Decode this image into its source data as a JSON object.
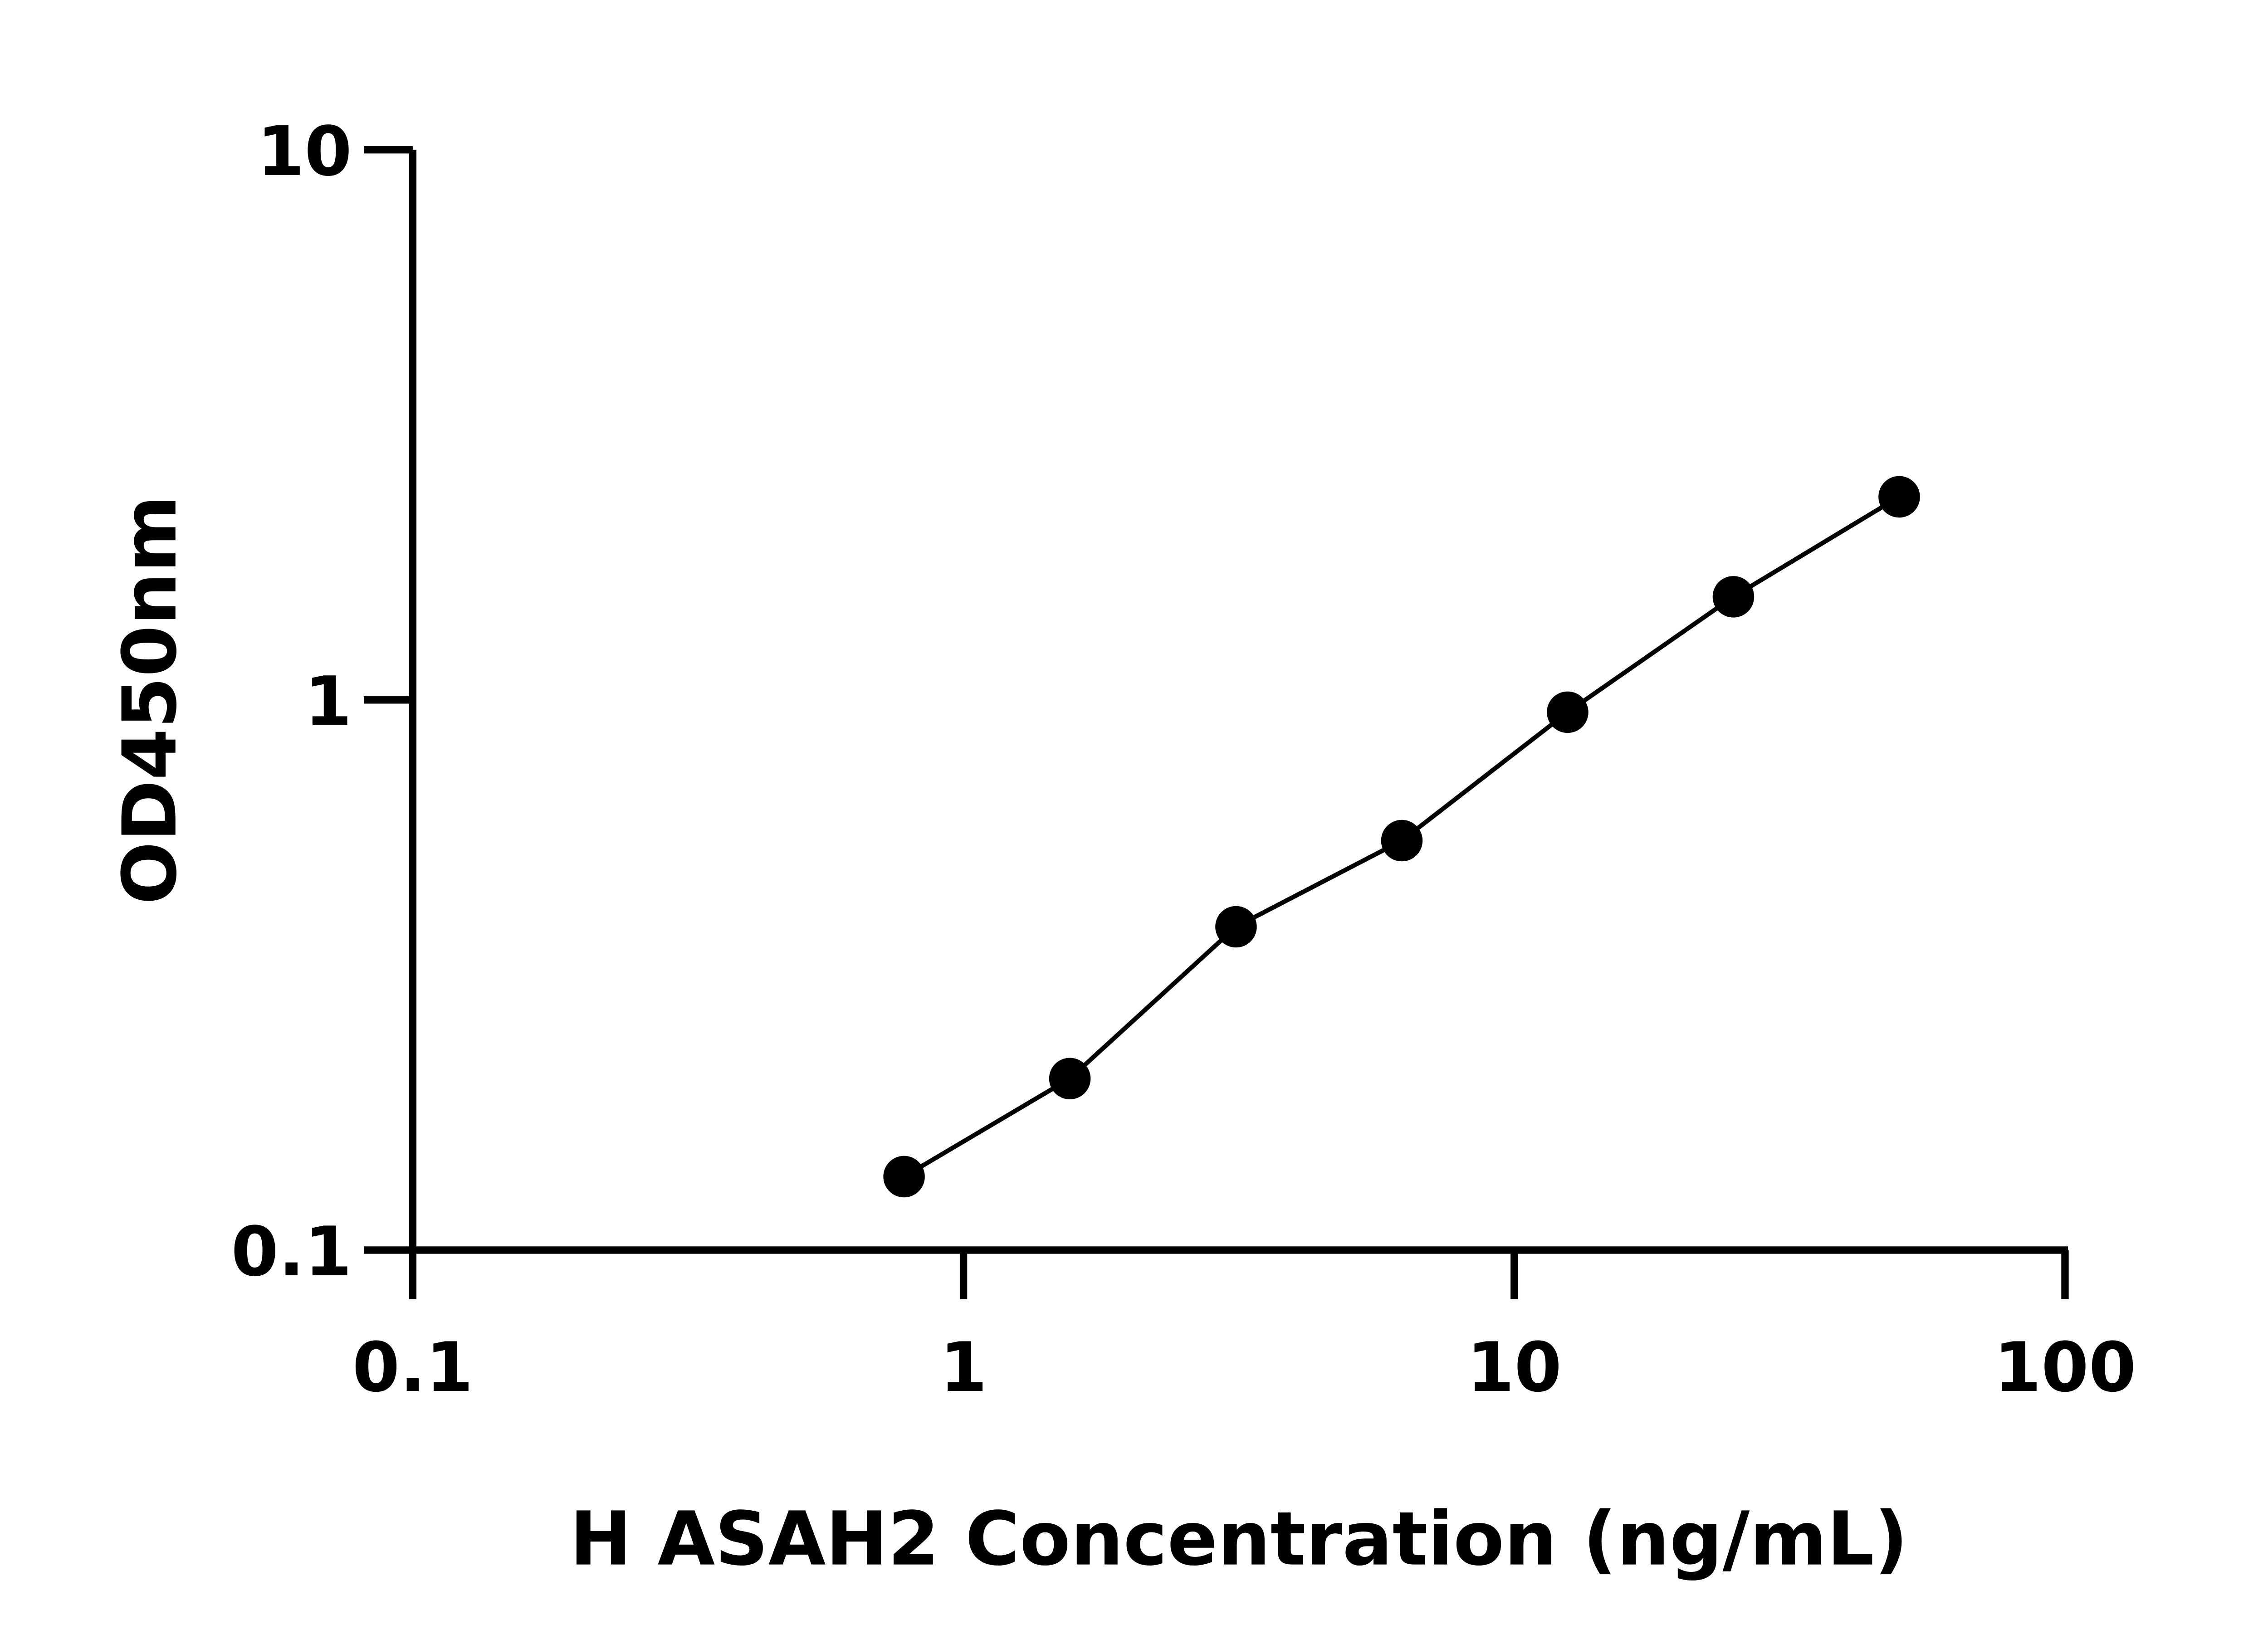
{
  "chart_data": {
    "type": "line",
    "title": "",
    "xlabel": "H ASAH2 Concentration (ng/mL)",
    "ylabel": "OD450nm",
    "xscale": "log",
    "yscale": "log",
    "xlim": [
      0.1,
      100
    ],
    "ylim": [
      0.1,
      10
    ],
    "xticks": [
      "0.1",
      "1",
      "10",
      "100"
    ],
    "yticks": [
      "0.1",
      "1",
      "10"
    ],
    "grid": false,
    "marker": "filled-circle",
    "color": "#000000",
    "x": [
      0.78,
      1.56,
      3.125,
      6.25,
      12.5,
      25,
      50
    ],
    "y": [
      0.136,
      0.205,
      0.387,
      0.555,
      0.95,
      1.54,
      2.34
    ]
  }
}
